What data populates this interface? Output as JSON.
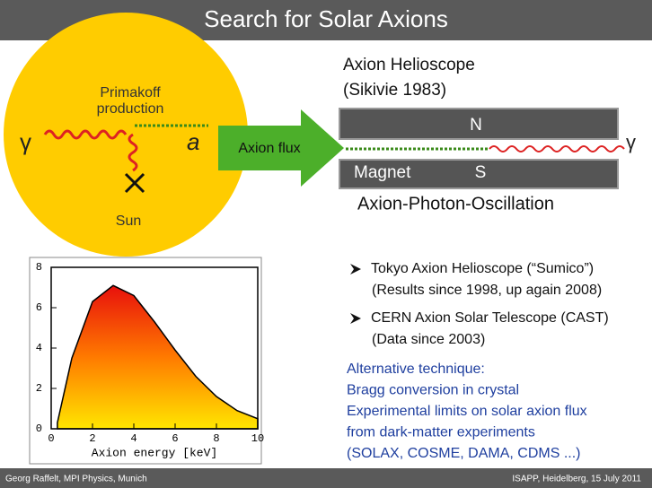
{
  "header": {
    "title": "Search for Solar Axions"
  },
  "diagram": {
    "primakoff": [
      "Primakoff",
      "production"
    ],
    "gamma_in": "γ",
    "axion": "a",
    "sun": "Sun",
    "flux": "Axion  flux",
    "helioscope": [
      "Axion Helioscope",
      "(Sikivie 1983)"
    ],
    "north": "N",
    "south": "S",
    "magnet": "Magnet",
    "gamma_out": "γ",
    "oscillation": "Axion-Photon-Oscillation"
  },
  "bullets": [
    [
      "Tokyo Axion Helioscope (“Sumico”)",
      "(Results since 1998, up again 2008)"
    ],
    [
      "CERN Axion Solar Telescope (CAST)",
      "(Data since 2003)"
    ]
  ],
  "alternative": [
    "Alternative technique:",
    "Bragg conversion in crystal",
    "Experimental limits on solar axion flux",
    "from dark-matter experiments",
    "(SOLAX, COSME, DAMA, CDMS ...)"
  ],
  "chart_data": {
    "type": "area",
    "x_label": "Axion energy [keV]",
    "x": [
      0.3,
      1,
      2,
      3,
      4,
      5,
      6,
      7,
      8,
      9,
      10
    ],
    "values": [
      0.3,
      3.5,
      6.3,
      7.1,
      6.6,
      5.3,
      3.9,
      2.6,
      1.6,
      0.9,
      0.5
    ],
    "xlim": [
      0,
      10
    ],
    "ylim": [
      0,
      8
    ],
    "xticks": [
      0,
      2,
      4,
      6,
      8,
      10
    ],
    "yticks": [
      0,
      2,
      4,
      6,
      8
    ]
  },
  "footer": {
    "left": "Georg Raffelt, MPI Physics, Munich",
    "right": "ISAPP, Heidelberg, 15 July 2011"
  }
}
